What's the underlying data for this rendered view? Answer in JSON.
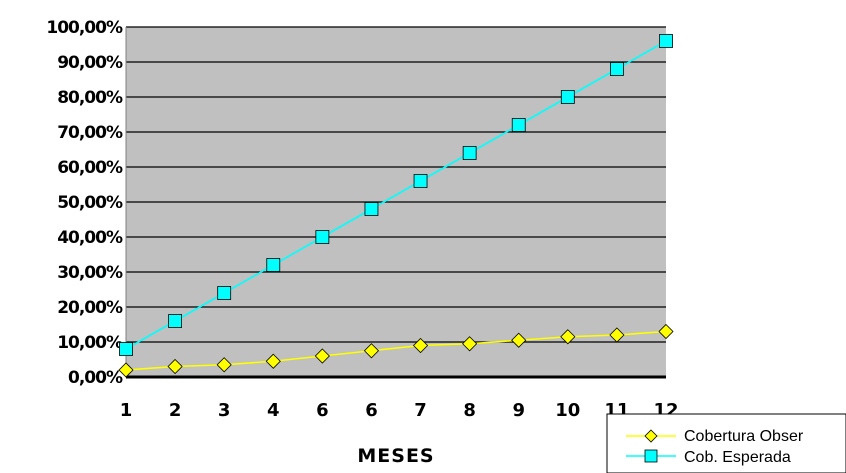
{
  "chart_data": {
    "type": "line",
    "title": "",
    "xlabel": "MESES",
    "ylabel": "",
    "categories": [
      "1",
      "2",
      "3",
      "4",
      "6",
      "6",
      "7",
      "8",
      "9",
      "10",
      "11",
      "12"
    ],
    "y_ticks": [
      "0,00%",
      "10,00%",
      "20,00%",
      "30,00%",
      "40,00%",
      "50,00%",
      "60,00%",
      "70,00%",
      "80,00%",
      "90,00%",
      "100,00%"
    ],
    "ylim": [
      0,
      100
    ],
    "grid": true,
    "legend_position": "bottom-right",
    "plot_background": "#c0c0c0",
    "series": [
      {
        "name": "Cobertura Obser",
        "color": "#ffff00",
        "marker": "diamond",
        "values": [
          2,
          3,
          3.5,
          4.5,
          6,
          7.5,
          9,
          9.5,
          10.5,
          11.5,
          12,
          13
        ]
      },
      {
        "name": "Cob. Esperada",
        "color": "#00ffff",
        "marker": "square",
        "values": [
          8,
          16,
          24,
          32,
          40,
          48,
          56,
          64,
          72,
          80,
          88,
          96
        ]
      }
    ]
  }
}
